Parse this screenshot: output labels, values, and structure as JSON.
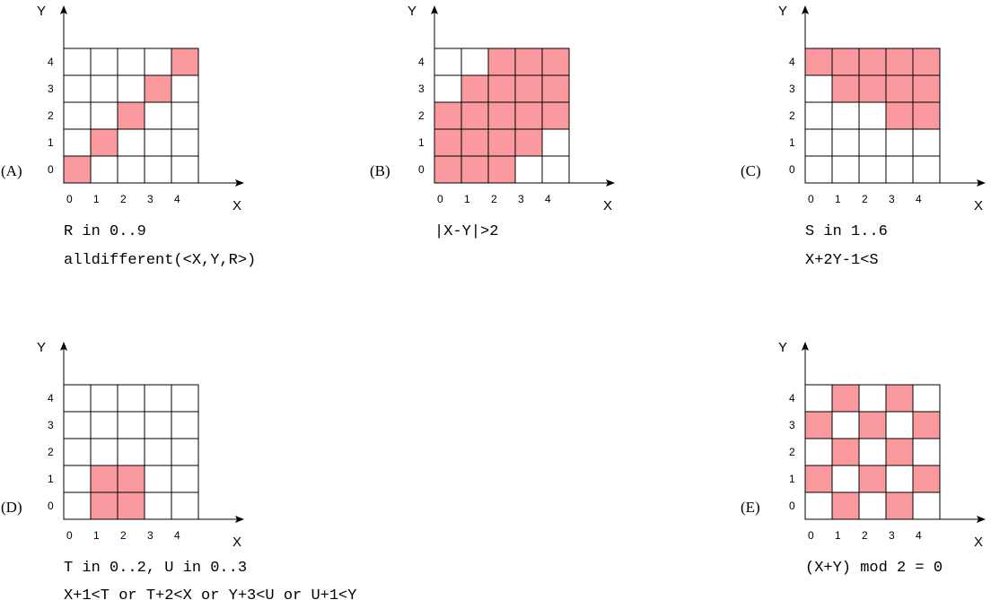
{
  "colors": {
    "filled": "#fa9a9e",
    "empty": "#ffffff",
    "grid": "#000000"
  },
  "axes": {
    "x_label": "X",
    "y_label": "Y",
    "ticks": [
      "0",
      "1",
      "2",
      "3",
      "4"
    ]
  },
  "panels": [
    {
      "id": "A",
      "label": "(A)",
      "constraints": [
        "R in 0..9",
        "alldifferent(<X,Y,R>)"
      ],
      "filled_cells": [
        [
          0,
          0
        ],
        [
          1,
          1
        ],
        [
          2,
          2
        ],
        [
          3,
          3
        ],
        [
          4,
          4
        ]
      ]
    },
    {
      "id": "B",
      "label": "(B)",
      "constraints": [
        "|X-Y|>2"
      ],
      "filled_cells": [
        [
          2,
          4
        ],
        [
          3,
          4
        ],
        [
          4,
          4
        ],
        [
          1,
          3
        ],
        [
          2,
          3
        ],
        [
          3,
          3
        ],
        [
          4,
          3
        ],
        [
          0,
          2
        ],
        [
          1,
          2
        ],
        [
          2,
          2
        ],
        [
          3,
          2
        ],
        [
          4,
          2
        ],
        [
          0,
          1
        ],
        [
          1,
          1
        ],
        [
          2,
          1
        ],
        [
          3,
          1
        ],
        [
          0,
          0
        ],
        [
          1,
          0
        ],
        [
          2,
          0
        ]
      ]
    },
    {
      "id": "C",
      "label": "(C)",
      "constraints": [
        "S in 1..6",
        "X+2Y-1<S"
      ],
      "filled_cells": [
        [
          0,
          4
        ],
        [
          1,
          4
        ],
        [
          2,
          4
        ],
        [
          3,
          4
        ],
        [
          4,
          4
        ],
        [
          1,
          3
        ],
        [
          2,
          3
        ],
        [
          3,
          3
        ],
        [
          4,
          3
        ],
        [
          3,
          2
        ],
        [
          4,
          2
        ]
      ]
    },
    {
      "id": "D",
      "label": "(D)",
      "constraints": [
        "T in 0..2, U in 0..3",
        "X+1<T or T+2<X or Y+3<U or U+1<Y"
      ],
      "filled_cells": [
        [
          1,
          1
        ],
        [
          2,
          1
        ],
        [
          1,
          0
        ],
        [
          2,
          0
        ]
      ]
    },
    {
      "id": "E",
      "label": "(E)",
      "constraints": [
        "(X+Y) mod 2 = 0"
      ],
      "filled_cells": [
        [
          1,
          4
        ],
        [
          3,
          4
        ],
        [
          0,
          3
        ],
        [
          2,
          3
        ],
        [
          4,
          3
        ],
        [
          1,
          2
        ],
        [
          3,
          2
        ],
        [
          0,
          1
        ],
        [
          2,
          1
        ],
        [
          4,
          1
        ],
        [
          1,
          0
        ],
        [
          3,
          0
        ]
      ]
    }
  ]
}
